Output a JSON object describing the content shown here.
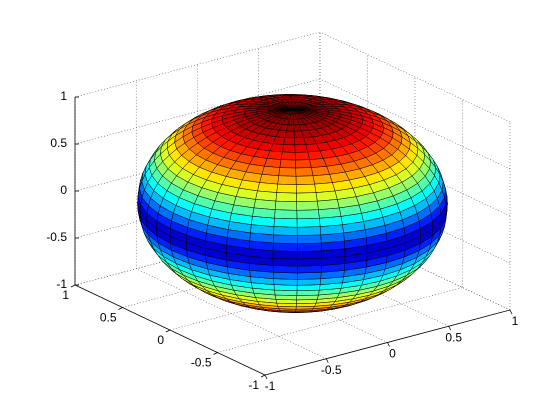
{
  "chart_data": {
    "type": "surface",
    "shape": "sphere",
    "mesh": 40,
    "colormap": "jet",
    "xlim": [
      -1,
      1
    ],
    "ylim": [
      -1,
      1
    ],
    "zlim": [
      -1,
      1
    ],
    "xticks": [
      -1,
      -0.5,
      0,
      0.5,
      1
    ],
    "yticks": [
      -1,
      -0.5,
      0,
      0.5,
      1
    ],
    "zticks": [
      -1,
      -0.5,
      0,
      0.5,
      1
    ],
    "grid": true
  }
}
